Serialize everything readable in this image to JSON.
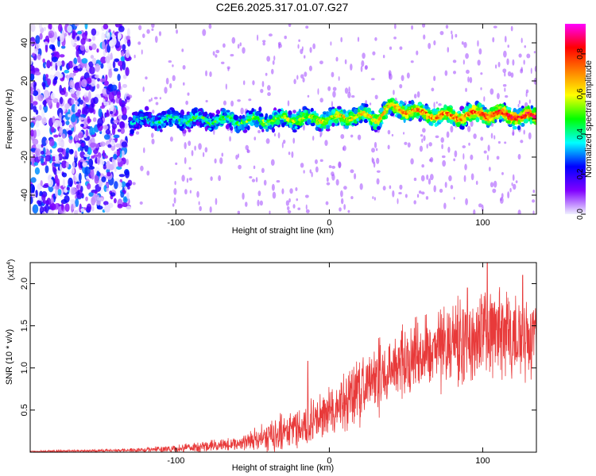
{
  "title": "C2E6.2025.317.01.07.G27",
  "chart_data": [
    {
      "type": "heatmap",
      "xlabel": "Height of straight line (km)",
      "ylabel": "Frequency (Hz)",
      "xlim": [
        -195,
        135
      ],
      "ylim": [
        -50,
        50
      ],
      "xticks": [
        -100,
        0,
        100
      ],
      "yticks": [
        -40,
        -20,
        0,
        20,
        40
      ],
      "colorbar": {
        "label": "Normalized spectral amplitude",
        "range": [
          0.0,
          0.95
        ],
        "ticks": [
          0.0,
          0.2,
          0.4,
          0.6,
          0.8
        ],
        "tick_labels": [
          "0.0",
          "0.2",
          "0.4",
          "0.6",
          "0.8"
        ],
        "colormap": [
          "#f0f0ff",
          "#8000ff",
          "#0000ff",
          "#00ffff",
          "#00ff00",
          "#ffff00",
          "#ff8000",
          "#ff0000",
          "#ff00ff"
        ]
      },
      "noise_region_x": [
        -195,
        -130
      ],
      "band_center": [
        {
          "x": -130,
          "y": -1
        },
        {
          "x": -100,
          "y": 0
        },
        {
          "x": -60,
          "y": -1
        },
        {
          "x": -20,
          "y": 0
        },
        {
          "x": 0,
          "y": 0
        },
        {
          "x": 20,
          "y": 2
        },
        {
          "x": 30,
          "y": 0
        },
        {
          "x": 40,
          "y": 6
        },
        {
          "x": 60,
          "y": 3
        },
        {
          "x": 80,
          "y": 1
        },
        {
          "x": 100,
          "y": 3
        },
        {
          "x": 130,
          "y": 1
        }
      ],
      "band_halfwidth_hz": 6,
      "grid": false
    },
    {
      "type": "line",
      "xlabel": "Height of straight line (km)",
      "ylabel": "SNR (10 * v/v)",
      "y_multiplier_label": "(x10",
      "y_multiplier_exp": "4",
      "y_multiplier_close": ")",
      "xlim": [
        -195,
        135
      ],
      "ylim": [
        0,
        2.25
      ],
      "xticks": [
        -100,
        0,
        100
      ],
      "yticks": [
        0.5,
        1.0,
        1.5,
        2.0
      ],
      "ytick_labels": [
        "0.5",
        "1.0",
        "1.5",
        "2.0"
      ],
      "color": "#e83a3a",
      "series": [
        {
          "envelope": [
            {
              "x": -195,
              "mean": 0.01,
              "spread": 0.01
            },
            {
              "x": -140,
              "mean": 0.02,
              "spread": 0.02
            },
            {
              "x": -100,
              "mean": 0.04,
              "spread": 0.05
            },
            {
              "x": -60,
              "mean": 0.1,
              "spread": 0.1
            },
            {
              "x": -40,
              "mean": 0.18,
              "spread": 0.2
            },
            {
              "x": -20,
              "mean": 0.3,
              "spread": 0.3
            },
            {
              "x": 0,
              "mean": 0.45,
              "spread": 0.4
            },
            {
              "x": 20,
              "mean": 0.75,
              "spread": 0.5
            },
            {
              "x": 40,
              "mean": 1.0,
              "spread": 0.55
            },
            {
              "x": 60,
              "mean": 1.15,
              "spread": 0.55
            },
            {
              "x": 80,
              "mean": 1.3,
              "spread": 0.6
            },
            {
              "x": 100,
              "mean": 1.4,
              "spread": 0.7
            },
            {
              "x": 115,
              "mean": 1.4,
              "spread": 0.6
            },
            {
              "x": 135,
              "mean": 1.35,
              "spread": 0.55
            }
          ],
          "peaks": [
            {
              "x": -14,
              "y": 1.08
            },
            {
              "x": 103,
              "y": 2.25
            },
            {
              "x": 126,
              "y": 2.1
            },
            {
              "x": 90,
              "y": 1.95
            }
          ]
        }
      ]
    }
  ]
}
